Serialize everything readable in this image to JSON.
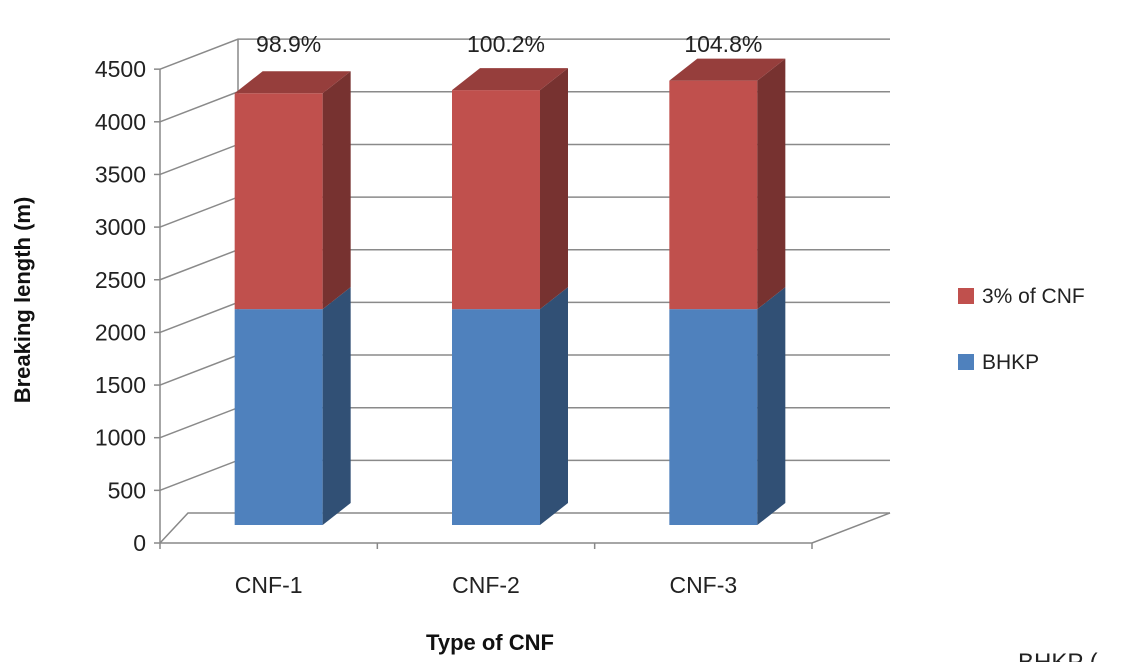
{
  "chart_data": {
    "type": "bar",
    "stacked": true,
    "three_d": true,
    "categories": [
      "CNF-1",
      "CNF-2",
      "CNF-3"
    ],
    "series": [
      {
        "name": "BHKP",
        "values": [
          2050,
          2050,
          2050
        ],
        "color": "#4f81bd"
      },
      {
        "name": "3% of CNF",
        "values": [
          2050,
          2080,
          2170
        ],
        "color": "#c0504d"
      }
    ],
    "bar_labels": [
      "98.9%",
      "100.2%",
      "104.8%"
    ],
    "xlabel": "Type of CNF",
    "ylabel": "Breaking length (m)",
    "ylim": [
      0,
      4500
    ],
    "yticks": [
      "0",
      "500",
      "1000",
      "1500",
      "2000",
      "2500",
      "3000",
      "3500",
      "4000",
      "4500"
    ],
    "grid": true,
    "legend_position": "right"
  },
  "cut_text": "BHKP ("
}
